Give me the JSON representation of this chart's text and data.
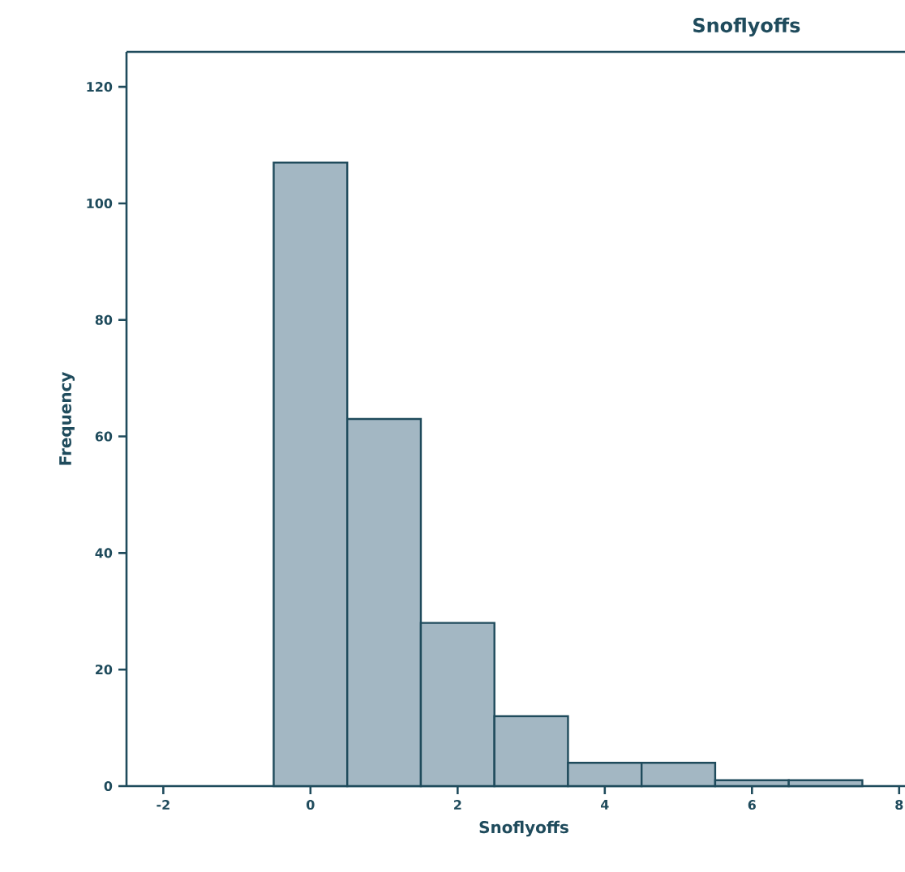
{
  "chart_data": {
    "type": "histogram",
    "title": "Snoflyoffs",
    "xlabel": "Snoflyoffs",
    "ylabel": "Frequency",
    "bins": [
      -0.5,
      0.5,
      1.5,
      2.5,
      3.5,
      4.5,
      5.5,
      6.5,
      7.5
    ],
    "values": [
      107,
      63,
      28,
      12,
      4,
      4,
      1,
      1
    ],
    "color": "#a3b7c3",
    "xlim": [
      -2.5,
      8.3
    ],
    "ylim": [
      0,
      126
    ],
    "xticks": [
      -2,
      0,
      2,
      4,
      6,
      8
    ],
    "yticks": [
      0,
      20,
      40,
      60,
      80,
      100,
      120
    ],
    "grid": false
  }
}
